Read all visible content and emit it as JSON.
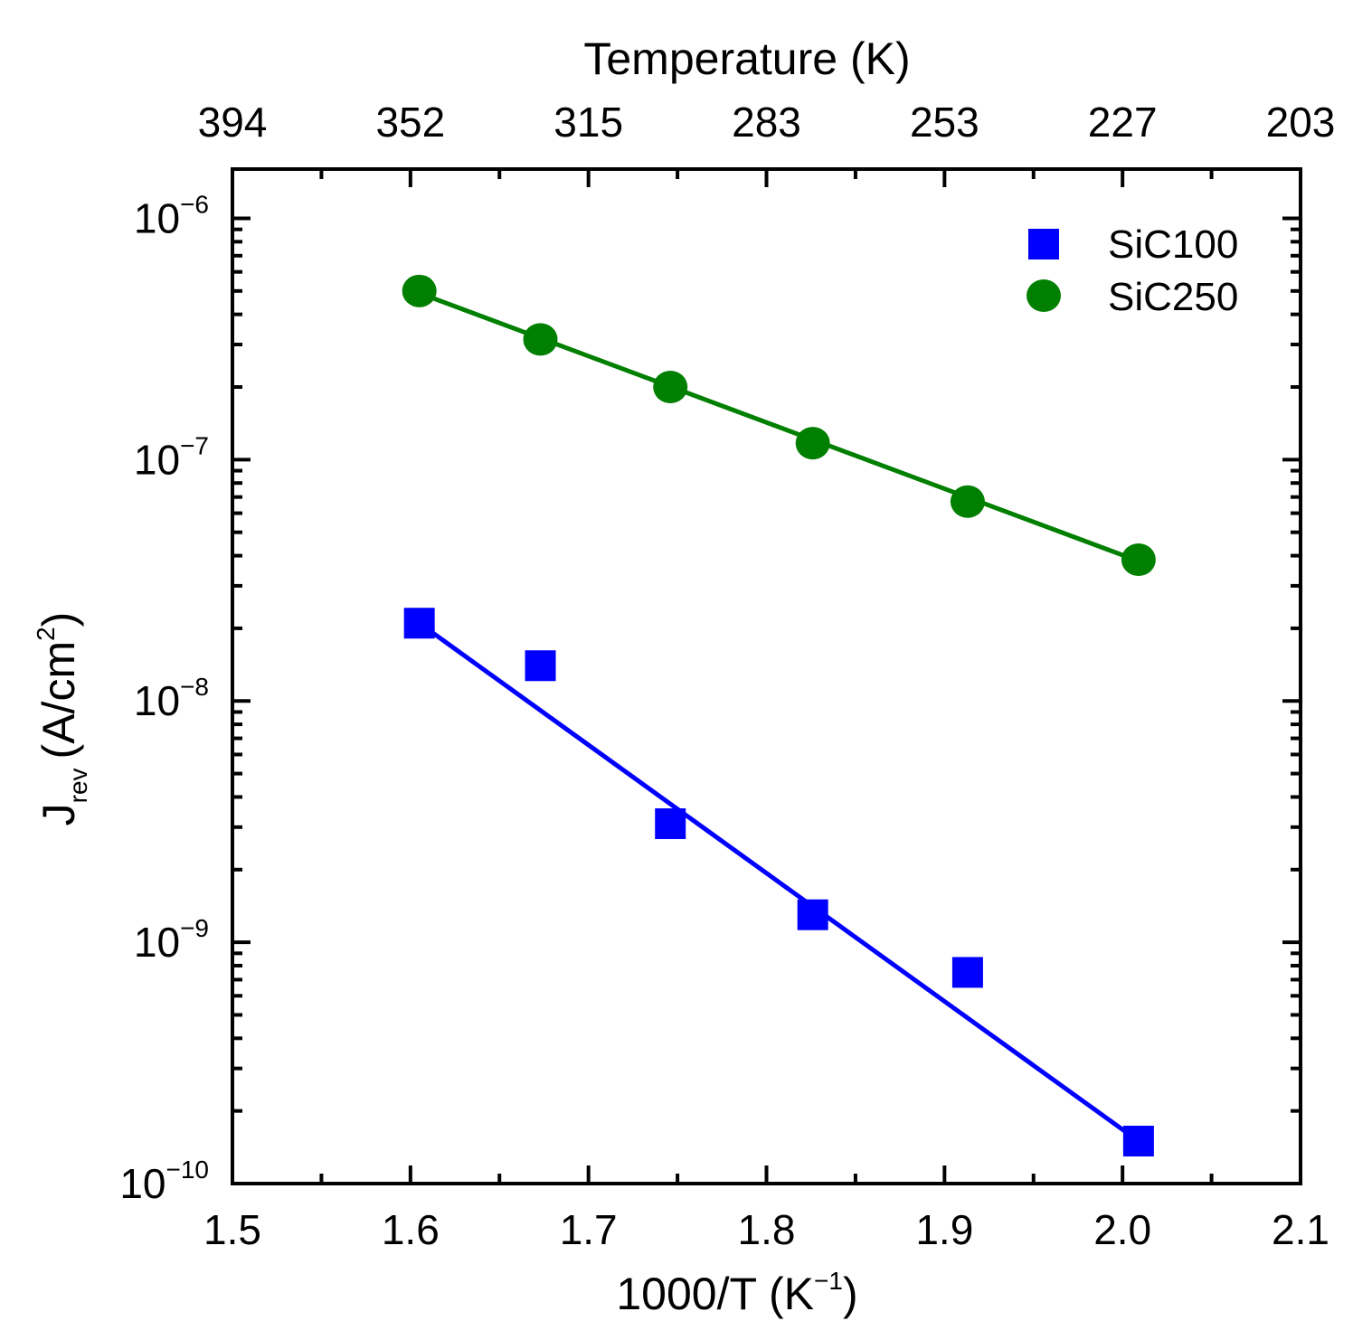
{
  "chart_data": {
    "type": "scatter",
    "x_axis": {
      "label_main": "1000/T (K",
      "label_sup": "−1",
      "label_close": ")",
      "range": [
        1.5,
        2.1
      ],
      "ticks": [
        1.5,
        1.6,
        1.7,
        1.8,
        1.9,
        2.0,
        2.1
      ],
      "tick_labels": [
        "1.5",
        "1.6",
        "1.7",
        "1.8",
        "1.9",
        "2.0",
        "2.1"
      ],
      "minor_ticks": [
        1.55,
        1.65,
        1.75,
        1.85,
        1.95,
        2.05
      ]
    },
    "top_axis": {
      "label": "Temperature (K)",
      "tick_positions": [
        1.5,
        1.6,
        1.7,
        1.8,
        1.9,
        2.0,
        2.1
      ],
      "tick_labels": [
        "394",
        "352",
        "315",
        "283",
        "253",
        "227",
        "203"
      ]
    },
    "y_axis": {
      "label_main": "J",
      "label_sub": "rev",
      "label_units": "(A/cm",
      "label_sup": "2",
      "label_close": ")",
      "scale": "log",
      "range": [
        1e-10,
        1.6e-06
      ],
      "ticks": [
        1e-10,
        1e-09,
        1e-08,
        1e-07,
        1e-06
      ],
      "tick_base": "10",
      "tick_exponents": [
        "−10",
        "−9",
        "−8",
        "−7",
        "−6"
      ]
    },
    "series": [
      {
        "name": "SiC100",
        "marker": "square",
        "color": "#0000ff",
        "points": [
          {
            "x": 1.605,
            "y": 2.1e-08
          },
          {
            "x": 1.673,
            "y": 1.4e-08
          },
          {
            "x": 1.746,
            "y": 3.1e-09
          },
          {
            "x": 1.826,
            "y": 1.3e-09
          },
          {
            "x": 1.913,
            "y": 7.5e-10
          },
          {
            "x": 2.009,
            "y": 1.5e-10
          }
        ],
        "fit": [
          {
            "x": 1.605,
            "y": 2.1e-08
          },
          {
            "x": 2.009,
            "y": 1.5e-10
          }
        ]
      },
      {
        "name": "SiC250",
        "marker": "circle",
        "color": "#007f00",
        "points": [
          {
            "x": 1.605,
            "y": 5e-07
          },
          {
            "x": 1.673,
            "y": 3.15e-07
          },
          {
            "x": 1.746,
            "y": 2e-07
          },
          {
            "x": 1.826,
            "y": 1.17e-07
          },
          {
            "x": 1.913,
            "y": 6.7e-08
          },
          {
            "x": 2.009,
            "y": 3.85e-08
          }
        ],
        "fit": [
          {
            "x": 1.605,
            "y": 4.9e-07
          },
          {
            "x": 2.009,
            "y": 3.8e-08
          }
        ]
      }
    ],
    "legend_position": "top-right",
    "grid": false
  }
}
